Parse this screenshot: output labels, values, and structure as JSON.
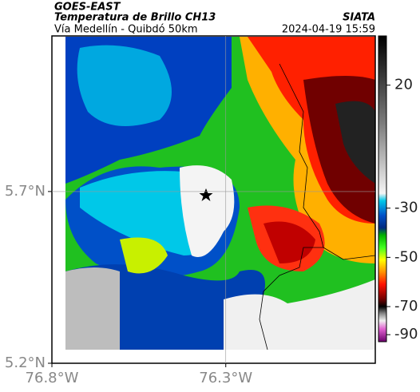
{
  "header": {
    "satellite": "GOES-EAST",
    "title": "Temperatura de Brillo CH13",
    "source": "SIATA",
    "subtitle": "Vía Medellín - Quibdó 50km",
    "datetime": "2024-04-19 15:59"
  },
  "map": {
    "lat_lim": [
      5.2,
      6.153
    ],
    "lon_lim": [
      -76.8,
      -75.87
    ],
    "lat_ticks": [
      {
        "value": 5.7,
        "label": "5.7°N"
      },
      {
        "value": 5.2,
        "label": "5.2°N"
      }
    ],
    "lon_ticks": [
      {
        "value": -76.8,
        "label": "76.8°W"
      },
      {
        "value": -76.3,
        "label": "76.3°W"
      }
    ],
    "grid_lat": [
      5.7
    ],
    "grid_lon": [
      -76.3
    ]
  },
  "colorbar": {
    "knots": [
      40,
      -70,
      -95
    ],
    "ticks": [
      20,
      -30,
      -50,
      -70,
      -90
    ],
    "colormap": [
      {
        "value": 40,
        "color": "#000000"
      },
      {
        "value": 5,
        "color": "#7a7a7a"
      },
      {
        "value": -24,
        "color": "#f4f4f4"
      },
      {
        "value": -27,
        "color": "#00c8e8"
      },
      {
        "value": -33,
        "color": "#0050c8"
      },
      {
        "value": -38,
        "color": "#002a80"
      },
      {
        "value": -41,
        "color": "#00b000"
      },
      {
        "value": -46,
        "color": "#40ff20"
      },
      {
        "value": -51,
        "color": "#ffff00"
      },
      {
        "value": -56,
        "color": "#ff9000"
      },
      {
        "value": -61,
        "color": "#ff1000"
      },
      {
        "value": -67,
        "color": "#700000"
      },
      {
        "value": -70,
        "color": "#000000"
      },
      {
        "value": -75,
        "color": "#888888"
      },
      {
        "value": -80,
        "color": "#f0f0f0"
      },
      {
        "value": -86,
        "color": "#e060d0"
      },
      {
        "value": -95,
        "color": "#6a006a"
      }
    ]
  }
}
